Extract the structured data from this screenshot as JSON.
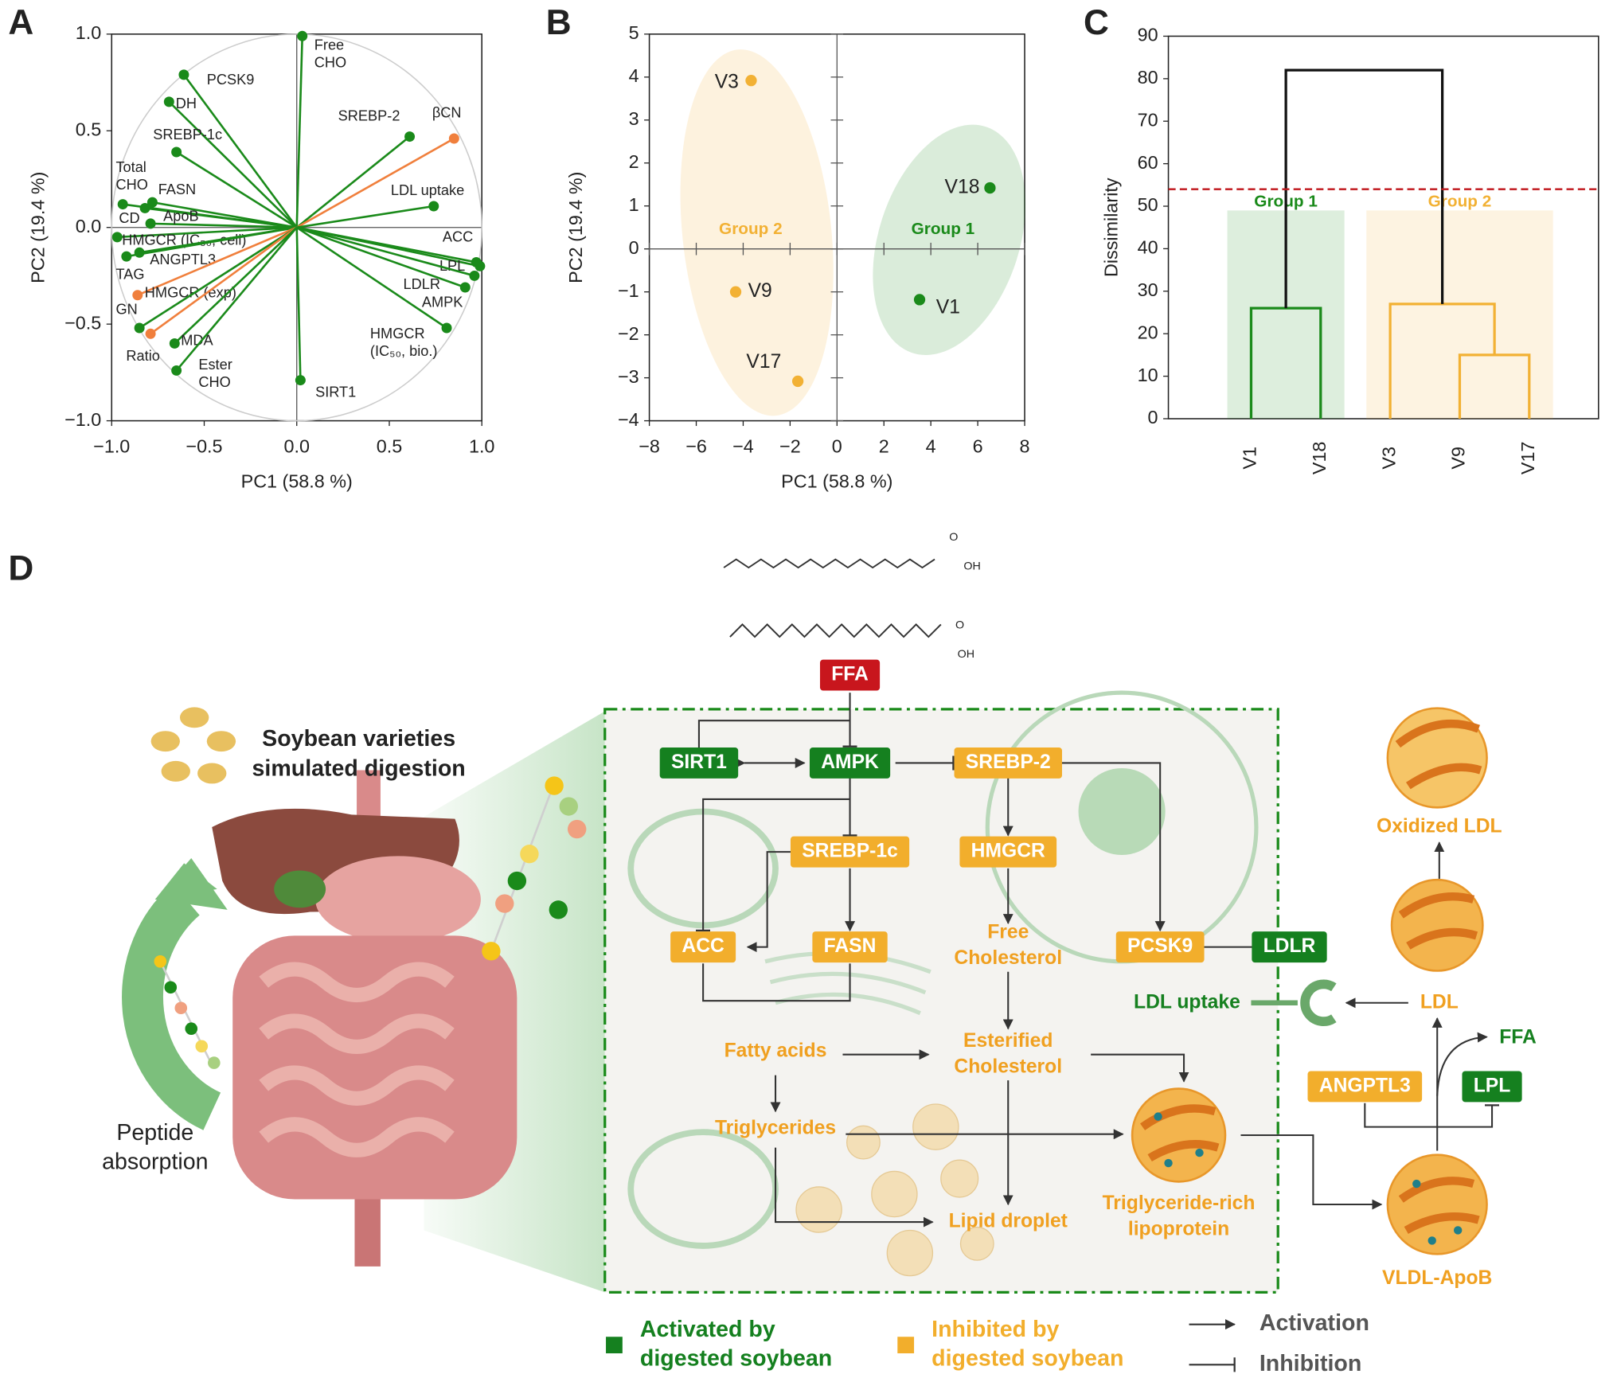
{
  "chart_data": [
    {
      "type": "biplot",
      "panel_label": "A",
      "x_label": "PC1 (58.8 %)",
      "y_label": "PC2 (19.4 %)",
      "xlim": [
        -1,
        1
      ],
      "ylim": [
        -1,
        1
      ],
      "xticks": [
        {
          "value": -1,
          "label": "−1.0"
        },
        {
          "value": -0.5,
          "label": "−0.5"
        },
        {
          "value": 0,
          "label": "0.0"
        },
        {
          "value": 0.5,
          "label": "0.5"
        },
        {
          "value": 1,
          "label": "1.0"
        }
      ],
      "yticks": [
        {
          "value": -1,
          "label": "−1.0"
        },
        {
          "value": -0.5,
          "label": "−0.5"
        },
        {
          "value": 0,
          "label": "0.0"
        },
        {
          "value": 0.5,
          "label": "0.5"
        },
        {
          "value": 1,
          "label": "1.0"
        }
      ],
      "vectors": [
        {
          "label": [
            "Free",
            "CHO"
          ],
          "x": 0.03,
          "y": 0.99,
          "color": "#1a8a1a"
        },
        {
          "label": [
            "PCSK9"
          ],
          "x": -0.61,
          "y": 0.79,
          "color": "#1a8a1a"
        },
        {
          "label": [
            "DH"
          ],
          "x": -0.69,
          "y": 0.65,
          "color": "#1a8a1a"
        },
        {
          "label": [
            "SREBP-1c"
          ],
          "x": -0.65,
          "y": 0.39,
          "color": "#1a8a1a"
        },
        {
          "label": [
            "SREBP-2"
          ],
          "x": 0.61,
          "y": 0.47,
          "color": "#1a8a1a"
        },
        {
          "label": [
            "βCN"
          ],
          "x": 0.85,
          "y": 0.46,
          "color": "#f07f3c"
        },
        {
          "label": [
            "LDL uptake"
          ],
          "x": 0.74,
          "y": 0.11,
          "color": "#1a8a1a"
        },
        {
          "label": [
            "Total",
            "CHO"
          ],
          "x": -0.94,
          "y": 0.12,
          "color": "#1a8a1a"
        },
        {
          "label": [
            "FASN"
          ],
          "x": -0.78,
          "y": 0.13,
          "color": "#1a8a1a"
        },
        {
          "label": [
            "CD"
          ],
          "x": -0.82,
          "y": 0.1,
          "color": "#1a8a1a"
        },
        {
          "label": [
            "ApoB"
          ],
          "x": -0.79,
          "y": 0.02,
          "color": "#1a8a1a"
        },
        {
          "label": [
            "HMGCR (IC₅₀, cell)"
          ],
          "x": -0.97,
          "y": -0.05,
          "color": "#1a8a1a"
        },
        {
          "label": [
            "ANGPTL3"
          ],
          "x": -0.85,
          "y": -0.13,
          "color": "#1a8a1a"
        },
        {
          "label": [
            "TAG"
          ],
          "x": -0.92,
          "y": -0.15,
          "color": "#1a8a1a"
        },
        {
          "label": [
            "HMGCR (exp)"
          ],
          "x": -0.86,
          "y": -0.35,
          "color": "#f07f3c"
        },
        {
          "label": [
            "GN"
          ],
          "x": -0.85,
          "y": -0.52,
          "color": "#1a8a1a"
        },
        {
          "label": [
            "Ratio"
          ],
          "x": -0.79,
          "y": -0.55,
          "color": "#f07f3c"
        },
        {
          "label": [
            "MDA"
          ],
          "x": -0.66,
          "y": -0.6,
          "color": "#1a8a1a"
        },
        {
          "label": [
            "Ester",
            "CHO"
          ],
          "x": -0.65,
          "y": -0.74,
          "color": "#1a8a1a"
        },
        {
          "label": [
            "SIRT1"
          ],
          "x": 0.02,
          "y": -0.79,
          "color": "#1a8a1a"
        },
        {
          "label": [
            "ACC"
          ],
          "x": 0.97,
          "y": -0.18,
          "color": "#1a8a1a"
        },
        {
          "label": [
            "LPL"
          ],
          "x": 0.99,
          "y": -0.2,
          "color": "#1a8a1a"
        },
        {
          "label": [
            "LDLR"
          ],
          "x": 0.96,
          "y": -0.25,
          "color": "#1a8a1a"
        },
        {
          "label": [
            "AMPK"
          ],
          "x": 0.91,
          "y": -0.31,
          "color": "#1a8a1a"
        },
        {
          "label": [
            "HMGCR",
            "(IC₅₀, bio.)"
          ],
          "x": 0.81,
          "y": -0.52,
          "color": "#1a8a1a"
        }
      ]
    },
    {
      "type": "scatter",
      "panel_label": "B",
      "x_label": "PC1 (58.8 %)",
      "y_label": "PC2 (19.4 %)",
      "xlim": [
        -8,
        8
      ],
      "ylim": [
        -4,
        5
      ],
      "xticks": [
        {
          "value": -8,
          "label": "−8"
        },
        {
          "value": -6,
          "label": "−6"
        },
        {
          "value": -4,
          "label": "−4"
        },
        {
          "value": -2,
          "label": "−2"
        },
        0,
        2,
        4,
        6,
        8
      ],
      "yticks": [
        {
          "value": -4,
          "label": "−4"
        },
        {
          "value": -3,
          "label": "−3"
        },
        {
          "value": -2,
          "label": "−2"
        },
        {
          "value": -1,
          "label": "−1"
        },
        0,
        1,
        2,
        3,
        4,
        5
      ],
      "series": [
        {
          "name": "Group 1",
          "color": "#1a8a1a",
          "x": [
            6.52,
            3.52
          ],
          "values": [
            1.42,
            -1.18
          ],
          "labels": [
            "V18",
            "V1"
          ]
        },
        {
          "name": "Group 2",
          "color": "#f2b134",
          "x": [
            -3.66,
            -4.32,
            -1.67
          ],
          "values": [
            3.92,
            -1.0,
            -3.08
          ],
          "labels": [
            "V3",
            "V9",
            "V17"
          ]
        }
      ]
    },
    {
      "type": "dendrogram",
      "panel_label": "C",
      "y_label": "Dissimilarity",
      "ylim": [
        0,
        90
      ],
      "yticks": [
        0,
        10,
        20,
        30,
        40,
        50,
        60,
        70,
        80,
        90
      ],
      "leaves": [
        "V1",
        "V18",
        "V3",
        "V9",
        "V17"
      ],
      "merges": [
        {
          "a": 0,
          "b": 1,
          "height": 26,
          "color": "#1a8a1a"
        },
        {
          "a": 3,
          "b": 4,
          "height": 15,
          "color": "#f2b134"
        },
        {
          "a": 2,
          "b": 6,
          "height": 27,
          "color": "#f2b134"
        },
        {
          "a": 5,
          "b": 7,
          "height": 82,
          "color": "#111111"
        }
      ],
      "threshold": 54,
      "threshold_color": "#c0161b",
      "groups": [
        {
          "name": "Group 1",
          "leaves": [
            0,
            1
          ],
          "band_top": 49,
          "color": "#1a8a1a"
        },
        {
          "name": "Group 2",
          "leaves": [
            2,
            3,
            4
          ],
          "band_top": 49,
          "color": "#f2b134"
        }
      ]
    }
  ],
  "diagram": {
    "panel_label": "D",
    "intro": [
      "Soybean varieties",
      "simulated digestion"
    ],
    "absorption": [
      "Peptide",
      "absorption"
    ],
    "structure_labels": [
      "O",
      "OH",
      "O",
      "OH"
    ],
    "nodes": [
      {
        "label": [
          "FFA"
        ],
        "kind": "source"
      },
      {
        "label": [
          "SIRT1"
        ],
        "kind": "activated"
      },
      {
        "label": [
          "AMPK"
        ],
        "kind": "activated"
      },
      {
        "label": [
          "SREBP-2"
        ],
        "kind": "inhibited"
      },
      {
        "label": [
          "SREBP-1c"
        ],
        "kind": "inhibited"
      },
      {
        "label": [
          "HMGCR"
        ],
        "kind": "inhibited"
      },
      {
        "label": [
          "ACC"
        ],
        "kind": "inhibited"
      },
      {
        "label": [
          "FASN"
        ],
        "kind": "inhibited"
      },
      {
        "label": [
          "PCSK9"
        ],
        "kind": "inhibited"
      },
      {
        "label": [
          "LDLR"
        ],
        "kind": "activated"
      },
      {
        "label": [
          "ANGPTL3"
        ],
        "kind": "inhibited"
      },
      {
        "label": [
          "LPL"
        ],
        "kind": "activated"
      },
      {
        "label": [
          "Free",
          "Cholesterol"
        ],
        "kind": "metabolite"
      },
      {
        "label": [
          "Esterified",
          "Cholesterol"
        ],
        "kind": "metabolite"
      },
      {
        "label": [
          "Fatty acids"
        ],
        "kind": "metabolite"
      },
      {
        "label": [
          "Triglycerides"
        ],
        "kind": "metabolite"
      },
      {
        "label": [
          "Lipid droplet"
        ],
        "kind": "metabolite"
      },
      {
        "label": [
          "Triglyceride-rich",
          "lipoprotein"
        ],
        "kind": "metabolite"
      },
      {
        "label": [
          "VLDL-ApoB"
        ],
        "kind": "metabolite"
      },
      {
        "label": [
          "LDL"
        ],
        "kind": "metabolite"
      },
      {
        "label": [
          "Oxidized LDL"
        ],
        "kind": "metabolite"
      },
      {
        "label": [
          "LDL uptake"
        ],
        "kind": "uptake"
      },
      {
        "label": [
          "FFA"
        ],
        "kind": "uptake"
      }
    ],
    "legend": [
      {
        "label": [
          "Activated by",
          "digested soybean"
        ],
        "kind": "activated"
      },
      {
        "label": [
          "Inhibited by",
          "digested soybean"
        ],
        "kind": "inhibited"
      },
      {
        "label": [
          "Activation"
        ],
        "kind": "arrow"
      },
      {
        "label": [
          "Inhibition"
        ],
        "kind": "bar"
      }
    ]
  }
}
